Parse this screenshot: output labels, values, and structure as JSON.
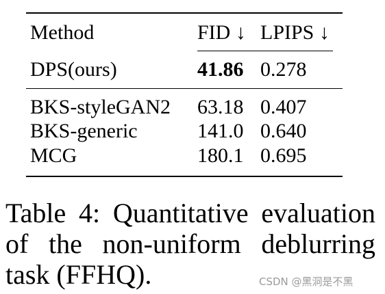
{
  "table": {
    "header": [
      "Method",
      "FID ↓",
      "LPIPS ↓"
    ],
    "rows": [
      [
        "DPS(ours)",
        "41.86",
        "0.278"
      ],
      [
        "BKS-styleGAN2",
        "63.18",
        "0.407"
      ],
      [
        "BKS-generic",
        "141.0",
        "0.640"
      ],
      [
        "MCG",
        "180.1",
        "0.695"
      ]
    ]
  },
  "caption": {
    "lines": [
      "Table 4: Quantitative evaluation",
      "of the non-uniform deblurring",
      "task (FFHQ)."
    ]
  },
  "watermark": "CSDN @黑洞是不黑"
}
